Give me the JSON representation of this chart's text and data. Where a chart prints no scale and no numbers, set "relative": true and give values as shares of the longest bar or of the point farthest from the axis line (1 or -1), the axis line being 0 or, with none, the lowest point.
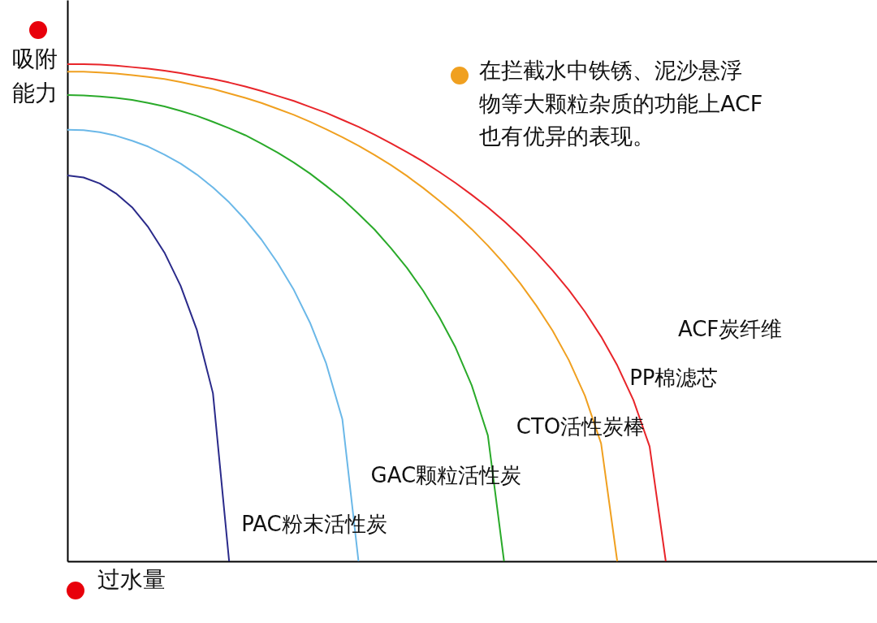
{
  "chart_data": {
    "type": "line",
    "relative": true,
    "xlabel": "过水量",
    "ylabel": "吸附能力",
    "annotations": [
      "在拦截水中铁锈、泥沙悬浮物等大颗粒杂质的功能上ACF也有优异的表现。"
    ],
    "categories": [
      null,
      null,
      null,
      null,
      null,
      null,
      null,
      null,
      null,
      null,
      null,
      null,
      null,
      null,
      null,
      null,
      null,
      null,
      null,
      null,
      null,
      null,
      null,
      null,
      null,
      null,
      null,
      null,
      null,
      null,
      null,
      null,
      null,
      null,
      null,
      null,
      null,
      null
    ],
    "series": [
      {
        "name": "ACF炭纤维",
        "color": "#e8252a",
        "values": [
          1,
          1,
          0.999,
          0.997,
          0.994,
          0.991,
          0.987,
          0.982,
          0.976,
          0.97,
          0.963,
          0.955,
          0.946,
          0.936,
          0.926,
          0.914,
          0.902,
          0.888,
          0.874,
          0.858,
          0.841,
          0.823,
          0.804,
          0.783,
          0.761,
          0.737,
          0.712,
          0.684,
          0.654,
          0.621,
          0.585,
          0.546,
          0.502,
          0.452,
          0.394,
          0.324,
          0.231,
          0
        ]
      },
      {
        "name": "PP棉滤芯",
        "color": "#f0a020",
        "values": [
          0.985,
          0.985,
          0.983,
          0.981,
          0.978,
          0.974,
          0.97,
          0.964,
          0.957,
          0.95,
          0.941,
          0.932,
          0.922,
          0.91,
          0.898,
          0.884,
          0.869,
          0.853,
          0.836,
          0.817,
          0.797,
          0.775,
          0.751,
          0.725,
          0.698,
          0.668,
          0.635,
          0.599,
          0.559,
          0.514,
          0.464,
          0.405,
          0.333,
          0.237,
          0,
          null,
          null,
          null
        ]
      },
      {
        "name": "CTO活性炭棒",
        "color": "#2aaa2a",
        "values": [
          0.938,
          0.937,
          0.935,
          0.932,
          0.928,
          0.922,
          0.915,
          0.906,
          0.896,
          0.884,
          0.871,
          0.857,
          0.84,
          0.822,
          0.802,
          0.78,
          0.755,
          0.729,
          0.699,
          0.667,
          0.63,
          0.59,
          0.544,
          0.491,
          0.43,
          0.354,
          0.253,
          0,
          null,
          null,
          null,
          null,
          null,
          null,
          null,
          null,
          null,
          null
        ]
      },
      {
        "name": "GAC颗粒活性炭",
        "color": "#6bb8e8",
        "values": [
          0.868,
          0.867,
          0.863,
          0.856,
          0.846,
          0.834,
          0.818,
          0.8,
          0.778,
          0.752,
          0.722,
          0.687,
          0.647,
          0.6,
          0.546,
          0.48,
          0.398,
          0.286,
          0,
          null,
          null,
          null,
          null,
          null,
          null,
          null,
          null,
          null,
          null,
          null,
          null,
          null,
          null,
          null,
          null,
          null,
          null,
          null
        ]
      },
      {
        "name": "PAC粉末活性炭",
        "color": "#2a2a8a",
        "values": [
          0.776,
          0.772,
          0.76,
          0.74,
          0.712,
          0.672,
          0.621,
          0.554,
          0.466,
          0.338,
          0,
          null,
          null,
          null,
          null,
          null,
          null,
          null,
          null,
          null,
          null,
          null,
          null,
          null,
          null,
          null,
          null,
          null,
          null,
          null,
          null,
          null,
          null,
          null,
          null,
          null,
          null,
          null
        ]
      }
    ]
  }
}
